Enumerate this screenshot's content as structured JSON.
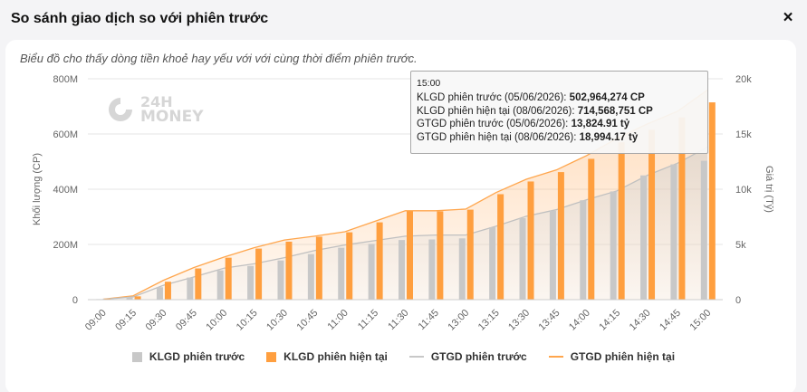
{
  "dialog": {
    "title": "So sánh giao dịch so với phiên trước",
    "close_icon": "×",
    "description": "Biểu đồ cho thấy dòng tiền khoẻ hay yếu với với cùng thời điểm phiên trước."
  },
  "logo": {
    "line1": "24H",
    "line2": "MONEY"
  },
  "colors": {
    "prev": "#c8c8c8",
    "curr": "#ff9f3f",
    "prev_line": "#c0c0c0",
    "curr_line": "#ffa64d",
    "axis_text": "#666666"
  },
  "tooltip": {
    "time": "15:00",
    "rows": [
      {
        "label": "KLGD phiên trước (05/06/2026): ",
        "value": "502,964,274 CP"
      },
      {
        "label": "KLGD phiên hiện tại (08/06/2026): ",
        "value": "714,568,751 CP"
      },
      {
        "label": "GTGD phiên trước (05/06/2026): ",
        "value": "13,824.91 tỷ"
      },
      {
        "label": "GTGD phiên hiện tại (08/06/2026): ",
        "value": "18,994.17 tỷ"
      }
    ]
  },
  "chart_data": {
    "type": "bar",
    "categories": [
      "09:00",
      "09:15",
      "09:30",
      "09:45",
      "10:00",
      "10:15",
      "10:30",
      "10:45",
      "11:00",
      "11:15",
      "11:30",
      "11:45",
      "13:00",
      "13:15",
      "13:30",
      "13:45",
      "14:00",
      "14:15",
      "14:30",
      "14:45",
      "15:00"
    ],
    "y_left": {
      "label": "Khối lượng (CP)",
      "ticks": [
        "0",
        "200M",
        "400M",
        "600M",
        "800M"
      ],
      "range": [
        0,
        800000000
      ]
    },
    "y_right": {
      "label": "Giá trị (Tỷ)",
      "ticks": [
        "0",
        "5k",
        "10k",
        "15k",
        "20k"
      ],
      "range": [
        0,
        20000
      ]
    },
    "series": [
      {
        "name": "KLGD phiên trước",
        "kind": "bar",
        "axis": "left",
        "values": [
          2000000,
          10000000,
          45000000,
          80000000,
          106000000,
          122000000,
          142000000,
          165000000,
          188000000,
          202000000,
          216000000,
          218000000,
          222000000,
          262000000,
          295000000,
          322000000,
          360000000,
          392000000,
          450000000,
          490000000,
          502964274
        ]
      },
      {
        "name": "KLGD phiên hiện tại",
        "kind": "bar",
        "axis": "left",
        "values": [
          3000000,
          12000000,
          65000000,
          113000000,
          152000000,
          185000000,
          210000000,
          228000000,
          244000000,
          280000000,
          320000000,
          320000000,
          326000000,
          382000000,
          428000000,
          462000000,
          510000000,
          570000000,
          615000000,
          660000000,
          714568751
        ]
      },
      {
        "name": "GTGD phiên trước",
        "kind": "area",
        "axis": "right",
        "values": [
          30,
          250,
          1300,
          2050,
          2850,
          3250,
          3800,
          4450,
          4950,
          5350,
          5750,
          5850,
          5850,
          6650,
          7550,
          8150,
          9050,
          9850,
          11250,
          12350,
          13824.91
        ]
      },
      {
        "name": "GTGD phiên hiện tại",
        "kind": "area",
        "axis": "right",
        "values": [
          40,
          350,
          1750,
          2900,
          3850,
          4700,
          5400,
          5750,
          6150,
          7100,
          8050,
          8050,
          8200,
          9700,
          10900,
          11750,
          13050,
          14600,
          15900,
          17050,
          18994.17
        ]
      }
    ],
    "legend_position": "bottom",
    "grid": true
  }
}
